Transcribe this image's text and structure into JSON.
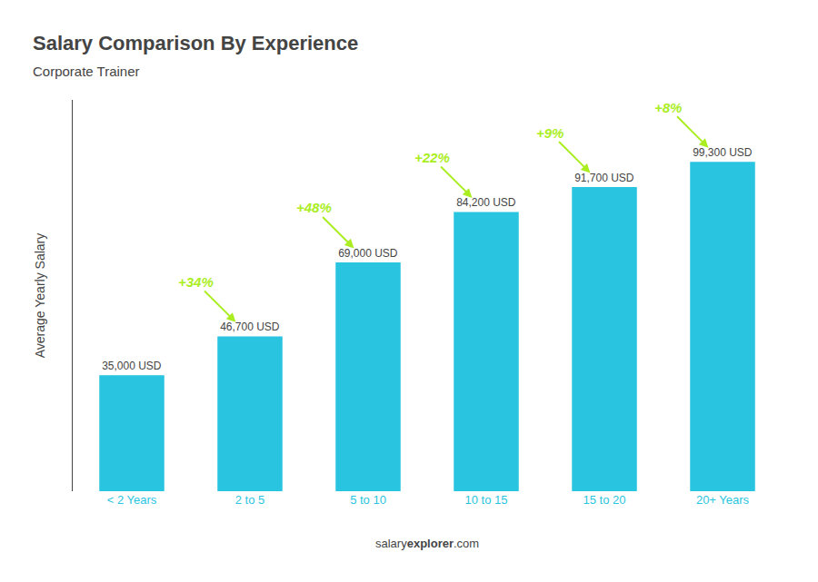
{
  "chart_data": {
    "type": "bar",
    "title": "Salary Comparison By Experience",
    "subtitle": "Corporate Trainer",
    "categories": [
      "< 2 Years",
      "2 to 5",
      "5 to 10",
      "10 to 15",
      "15 to 20",
      "20+ Years"
    ],
    "values": [
      35000,
      46700,
      69000,
      84200,
      91700,
      99300
    ],
    "value_labels": [
      "35,000 USD",
      "46,700 USD",
      "69,000 USD",
      "84,200 USD",
      "91,700 USD",
      "99,300 USD"
    ],
    "data_labels": true,
    "color": "#29c5e0",
    "ylabel": "Average Yearly Salary",
    "ylim": [
      0,
      118000
    ],
    "tick_labels": "x",
    "grid": false,
    "annotations": [
      {
        "text": "+34%",
        "color": "#aaee22"
      },
      {
        "text": "+48%",
        "color": "#aaee22"
      },
      {
        "text": "+22%",
        "color": "#aaee22"
      },
      {
        "text": "+9%",
        "color": "#aaee22"
      },
      {
        "text": "+8%",
        "color": "#aaee22"
      }
    ],
    "footer": [
      "salary",
      "explorer",
      ".com"
    ]
  }
}
